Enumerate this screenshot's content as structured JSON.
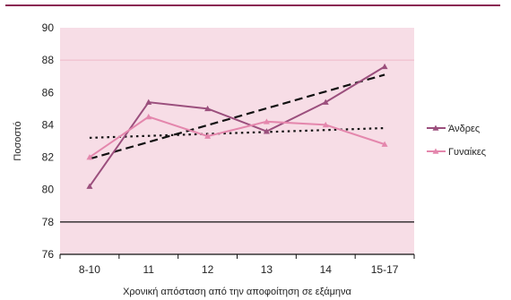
{
  "colors": {
    "plot_background": "#f7dde6",
    "reference_line": "#f0b8c8",
    "men": "#9b4f7d",
    "women": "#e487ad",
    "trend": "#111111",
    "top_rule": "#8a2252"
  },
  "chart_data": {
    "type": "line",
    "title": "",
    "xlabel": "Χρονική απόσταση από την αποφοίτηση σε εξάμηνα",
    "ylabel": "Ποσοστό",
    "categories": [
      "8-10",
      "11",
      "12",
      "13",
      "14",
      "15-17"
    ],
    "ylim": [
      76,
      90
    ],
    "yticks": [
      "76",
      "78",
      "80",
      "82",
      "84",
      "86",
      "88",
      "90"
    ],
    "reference_lines": [
      88,
      78
    ],
    "grid": false,
    "legend_position": "right",
    "series": [
      {
        "name": "Άνδρες",
        "values": [
          80.2,
          85.4,
          85.0,
          83.6,
          85.4,
          87.6
        ],
        "color": "men",
        "marker": "triangle"
      },
      {
        "name": "Γυναίκες",
        "values": [
          82.0,
          84.5,
          83.3,
          84.2,
          84.0,
          82.8
        ],
        "color": "women",
        "marker": "triangle"
      }
    ],
    "trendlines": [
      {
        "of": "Άνδρες",
        "start": 81.9,
        "end": 87.1,
        "dash": "long"
      },
      {
        "of": "Γυναίκες",
        "start": 83.2,
        "end": 83.8,
        "dash": "short"
      }
    ]
  }
}
